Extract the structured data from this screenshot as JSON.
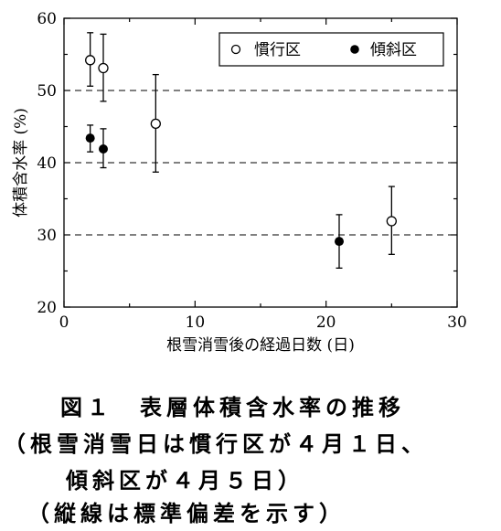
{
  "chart_data": {
    "type": "scatter",
    "ylabel": "体積含水率 (%)",
    "xlabel": "根雪消雪後の経過日数 (日)",
    "xlim": [
      0,
      30
    ],
    "ylim": [
      20,
      60
    ],
    "xticks": [
      0,
      10,
      20,
      30
    ],
    "yticks": [
      20,
      30,
      40,
      50,
      60
    ],
    "grid": "horizontal dashed at 30, 40, 50",
    "legend_position": "top-right",
    "series": [
      {
        "name": "慣行区",
        "marker": "open-circle",
        "points": [
          {
            "x": 2,
            "y": 54.2,
            "err_low": 50.6,
            "err_high": 58.0
          },
          {
            "x": 3,
            "y": 53.1,
            "err_low": 48.5,
            "err_high": 57.8
          },
          {
            "x": 7,
            "y": 45.4,
            "err_low": 38.7,
            "err_high": 52.2
          },
          {
            "x": 25,
            "y": 31.9,
            "err_low": 27.3,
            "err_high": 36.7
          }
        ]
      },
      {
        "name": "傾斜区",
        "marker": "filled-circle",
        "points": [
          {
            "x": 2,
            "y": 43.4,
            "err_low": 41.5,
            "err_high": 45.2
          },
          {
            "x": 3,
            "y": 41.9,
            "err_low": 39.3,
            "err_high": 44.7
          },
          {
            "x": 21,
            "y": 29.1,
            "err_low": 25.4,
            "err_high": 32.8
          }
        ]
      }
    ]
  },
  "caption": {
    "line1": "図１　表層体積含水率の推移",
    "line2": "（根雪消雪日は慣行区が４月１日、",
    "line3": "傾斜区が４月５日）",
    "line4": "（縦線は標準偏差を示す）"
  }
}
